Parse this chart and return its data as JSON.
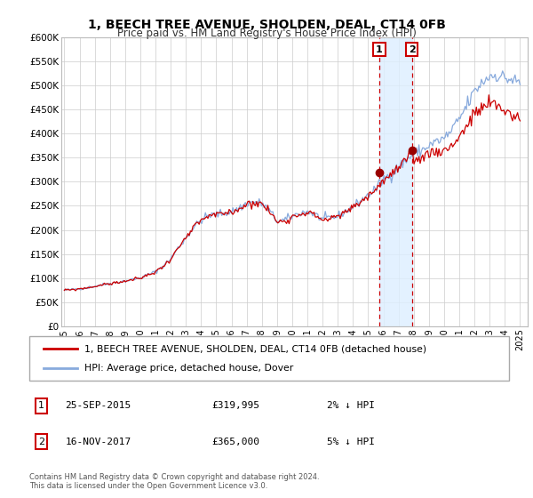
{
  "title": "1, BEECH TREE AVENUE, SHOLDEN, DEAL, CT14 0FB",
  "subtitle": "Price paid vs. HM Land Registry's House Price Index (HPI)",
  "ylim": [
    0,
    600000
  ],
  "yticks": [
    0,
    50000,
    100000,
    150000,
    200000,
    250000,
    300000,
    350000,
    400000,
    450000,
    500000,
    550000,
    600000
  ],
  "ytick_labels": [
    "£0",
    "£50K",
    "£100K",
    "£150K",
    "£200K",
    "£250K",
    "£300K",
    "£350K",
    "£400K",
    "£450K",
    "£500K",
    "£550K",
    "£600K"
  ],
  "xlim_start": 1994.8,
  "xlim_end": 2025.5,
  "xticks": [
    1995,
    1996,
    1997,
    1998,
    1999,
    2000,
    2001,
    2002,
    2003,
    2004,
    2005,
    2006,
    2007,
    2008,
    2009,
    2010,
    2011,
    2012,
    2013,
    2014,
    2015,
    2016,
    2017,
    2018,
    2019,
    2020,
    2021,
    2022,
    2023,
    2024,
    2025
  ],
  "property_color": "#cc0000",
  "hpi_color": "#88aadd",
  "marker_color": "#990000",
  "shade_color": "#ddeeff",
  "vline_color": "#cc0000",
  "transaction1_x": 2015.73,
  "transaction1_y": 319995,
  "transaction2_x": 2017.88,
  "transaction2_y": 365000,
  "legend_property": "1, BEECH TREE AVENUE, SHOLDEN, DEAL, CT14 0FB (detached house)",
  "legend_hpi": "HPI: Average price, detached house, Dover",
  "t1_date": "25-SEP-2015",
  "t1_price": "£319,995",
  "t1_hpi": "2% ↓ HPI",
  "t2_date": "16-NOV-2017",
  "t2_price": "£365,000",
  "t2_hpi": "5% ↓ HPI",
  "footer1": "Contains HM Land Registry data © Crown copyright and database right 2024.",
  "footer2": "This data is licensed under the Open Government Licence v3.0."
}
